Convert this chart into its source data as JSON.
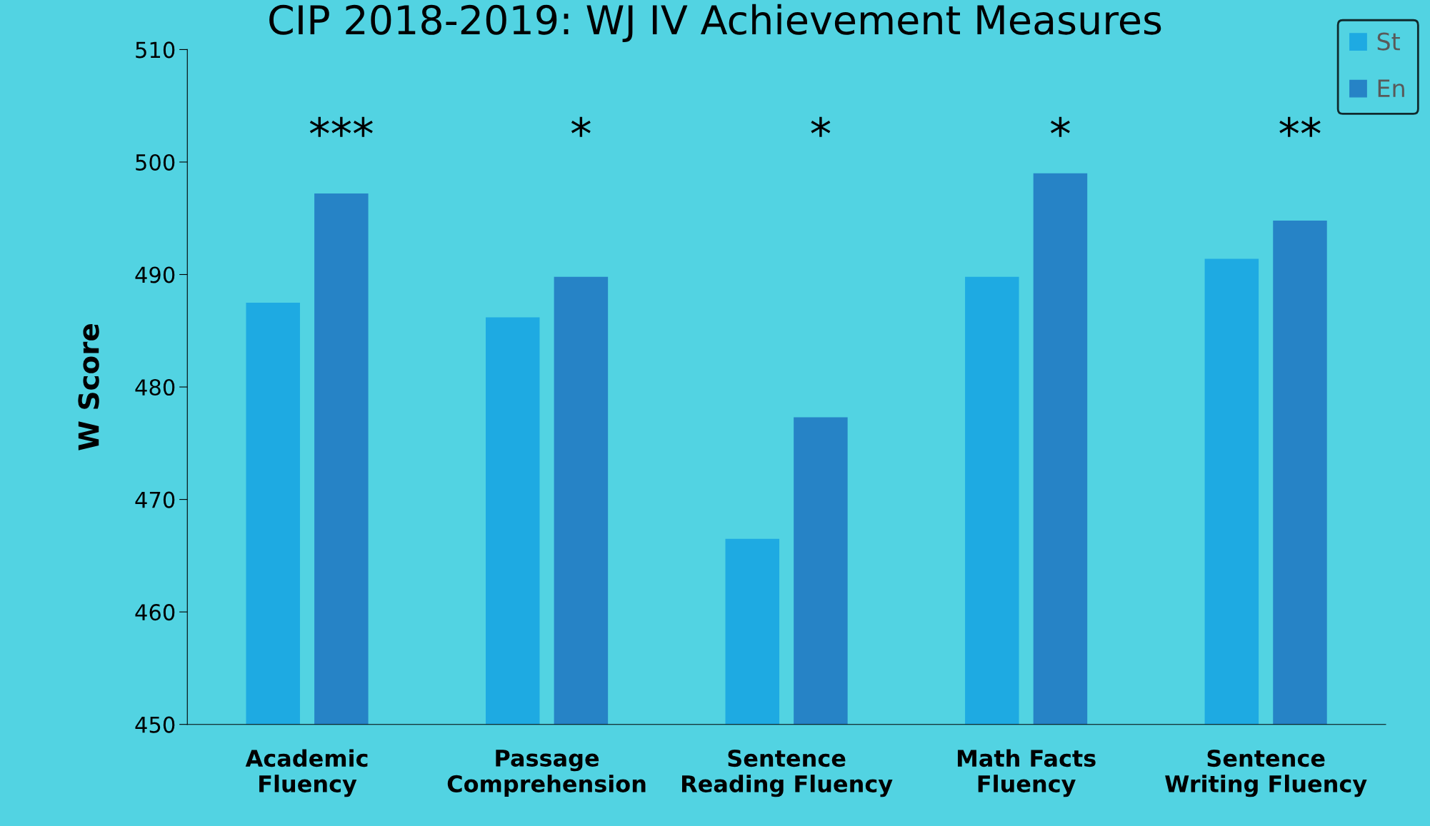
{
  "chart_data": {
    "type": "bar",
    "title": "CIP 2018-2019: WJ IV Achievement Measures",
    "ylabel": "W Score",
    "categories": [
      "Academic\nFluency",
      "Passage\nComprehension",
      "Sentence\nReading Fluency",
      "Math Facts\nFluency",
      "Sentence\nWriting Fluency"
    ],
    "series": [
      {
        "name": "St",
        "color": "#1eaae2",
        "values": [
          487.5,
          486.2,
          466.5,
          489.8,
          491.4
        ]
      },
      {
        "name": "En",
        "color": "#2683c6",
        "values": [
          497.2,
          489.8,
          477.3,
          499.0,
          494.8
        ]
      }
    ],
    "ylim": [
      450,
      510
    ],
    "yticks": [
      450,
      460,
      470,
      480,
      490,
      500,
      510
    ],
    "grid": false,
    "legend": "top right",
    "annotations": [
      "***",
      "*",
      "*",
      "*",
      "**"
    ]
  }
}
